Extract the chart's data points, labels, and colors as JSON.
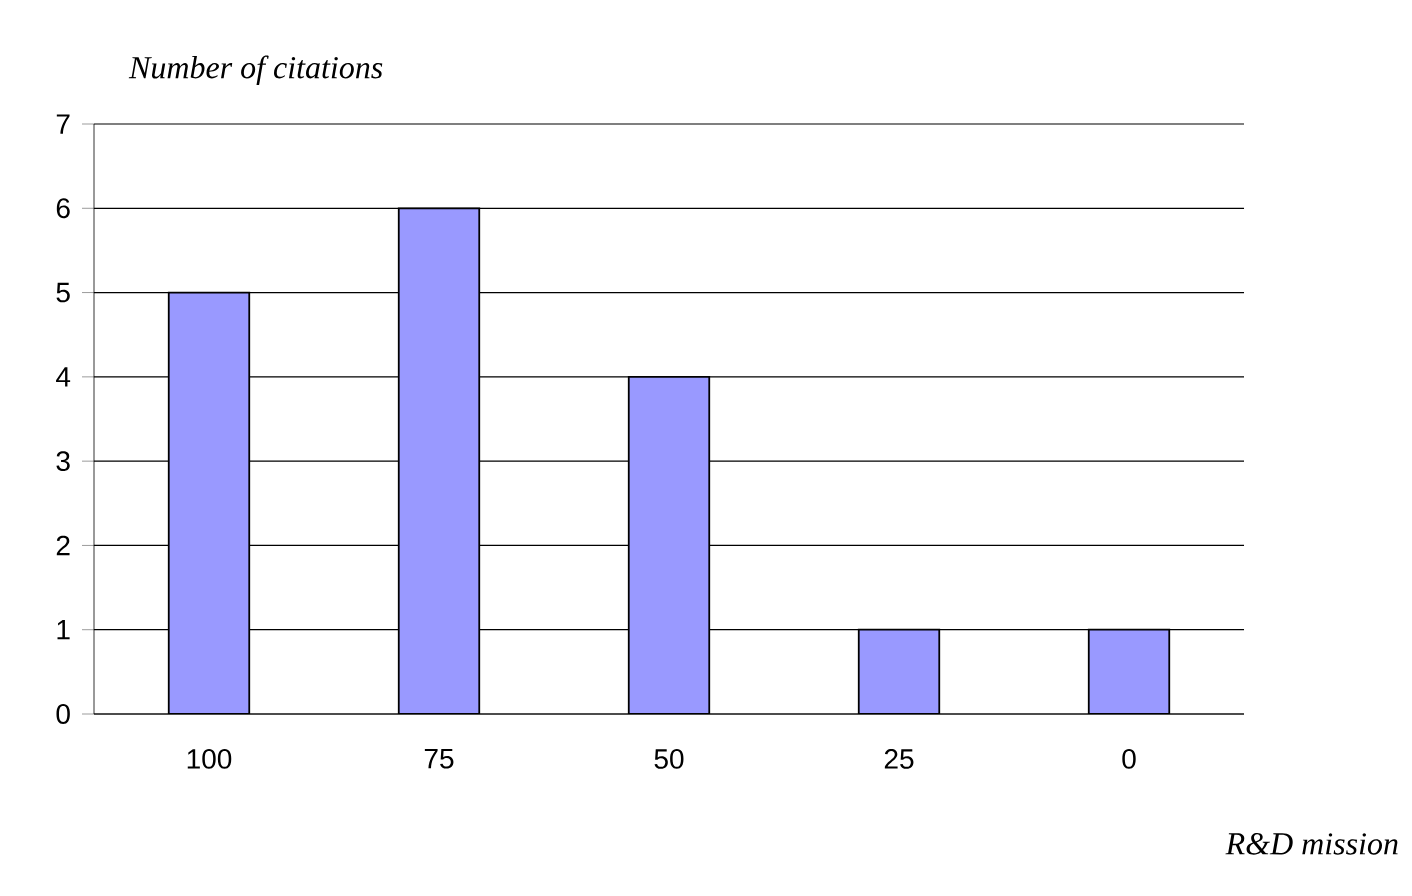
{
  "chart_data": {
    "type": "bar",
    "xlabel": "R&D mission",
    "ylabel": "Number of citations",
    "categories": [
      "100",
      "75",
      "50",
      "25",
      "0"
    ],
    "values": [
      5,
      6,
      4,
      1,
      1
    ],
    "color": "#9999ff",
    "ylim": [
      0,
      7
    ],
    "yticks": [
      0,
      1,
      2,
      3,
      4,
      5,
      6,
      7
    ],
    "grid": "y"
  }
}
